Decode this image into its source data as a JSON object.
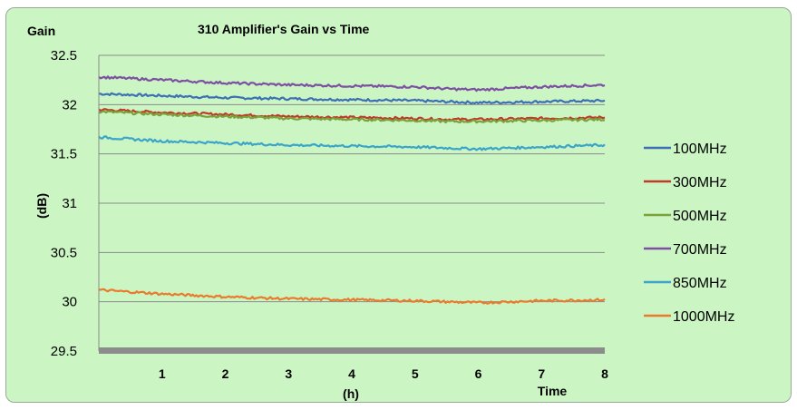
{
  "chart_data": {
    "type": "line",
    "title": "310 Amplifier's Gain vs Time",
    "ylabel_top": "Gain",
    "ylabel_unit": "(dB)",
    "xlabel_unit": "(h)",
    "xlabel": "Time",
    "xlim": [
      0,
      8
    ],
    "ylim": [
      29.5,
      32.5
    ],
    "y_ticks": [
      "29.5",
      "30",
      "30.5",
      "31",
      "31.5",
      "32",
      "32.5"
    ],
    "x_ticks": [
      "1",
      "2",
      "3",
      "4",
      "5",
      "6",
      "7",
      "8"
    ],
    "grid": "horizontal",
    "legend_position": "right",
    "x": [
      0,
      1,
      2,
      3,
      4,
      5,
      5.5,
      6,
      7,
      8
    ],
    "series": [
      {
        "name": "100MHz",
        "color": "#3c6fb4",
        "values": [
          32.11,
          32.09,
          32.07,
          32.06,
          32.05,
          32.04,
          32.03,
          32.02,
          32.03,
          32.04
        ]
      },
      {
        "name": "300MHz",
        "color": "#c0392b",
        "values": [
          31.95,
          31.92,
          31.9,
          31.88,
          31.87,
          31.86,
          31.85,
          31.85,
          31.86,
          31.87
        ]
      },
      {
        "name": "500MHz",
        "color": "#7aa23a",
        "values": [
          31.93,
          31.9,
          31.88,
          31.86,
          31.85,
          31.84,
          31.83,
          31.83,
          31.84,
          31.85
        ]
      },
      {
        "name": "700MHz",
        "color": "#7d4fa3",
        "values": [
          32.28,
          32.25,
          32.22,
          32.2,
          32.19,
          32.18,
          32.16,
          32.15,
          32.18,
          32.2
        ]
      },
      {
        "name": "850MHz",
        "color": "#3ba4c9",
        "values": [
          31.67,
          31.63,
          31.61,
          31.59,
          31.58,
          31.57,
          31.56,
          31.55,
          31.57,
          31.59
        ]
      },
      {
        "name": "1000MHz",
        "color": "#ea7a2c",
        "values": [
          30.12,
          30.08,
          30.05,
          30.03,
          30.02,
          30.01,
          30.0,
          29.99,
          30.01,
          30.02
        ]
      }
    ]
  }
}
